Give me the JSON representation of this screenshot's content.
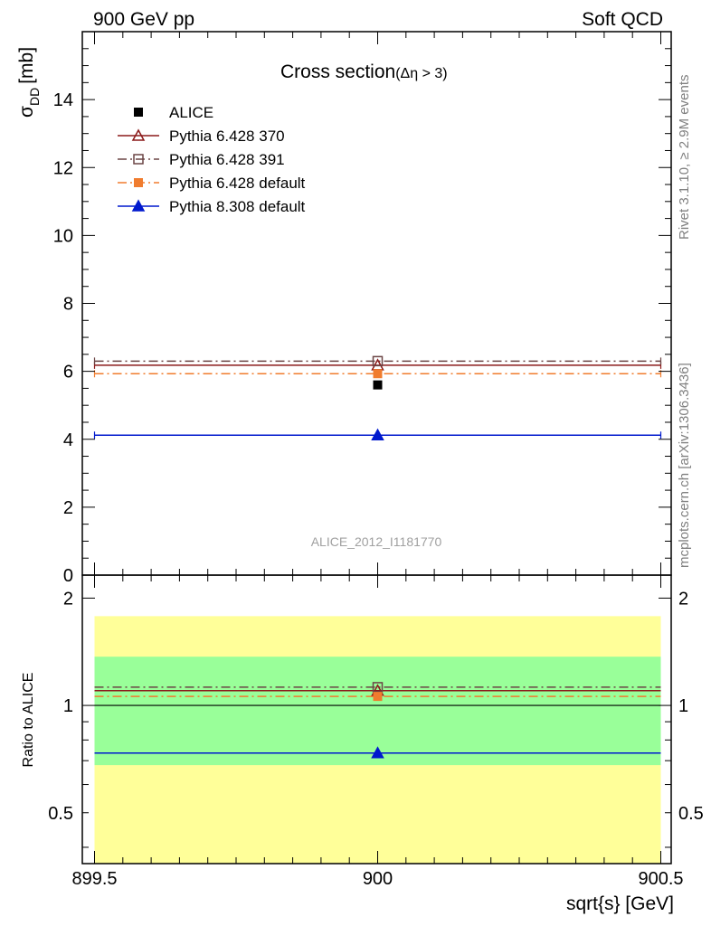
{
  "header": {
    "left": "900 GeV pp",
    "right": "Soft QCD"
  },
  "side_labels": {
    "rivet": "Rivet 3.1.10, ≥ 2.9M events",
    "mcplots": "mcplots.cern.ch [arXiv:1306.3436]"
  },
  "watermark": "ALICE_2012_I1181770",
  "chart_data": [
    {
      "type": "scatter",
      "title": "Cross section",
      "title_suffix": "(Δη > 3)",
      "ylabel_main": "σ",
      "ylabel_sub": "DD",
      "ylabel_unit": "[mb]",
      "xlim": [
        899.5,
        900.5
      ],
      "ylim": [
        0,
        16
      ],
      "yticks": [
        0,
        2,
        4,
        6,
        8,
        10,
        12,
        14
      ],
      "legend_position": "top-left",
      "series": [
        {
          "name": "ALICE",
          "color": "#000000",
          "marker": "square-filled",
          "line": "none",
          "points": [
            {
              "x": 900,
              "y": 5.6
            }
          ]
        },
        {
          "name": "Pythia 6.428 370",
          "color": "#8b1a1a",
          "marker": "triangle-open",
          "line": "solid",
          "points": [
            {
              "x": 900,
              "y": 6.18
            }
          ]
        },
        {
          "name": "Pythia 6.428 391",
          "color": "#6b4545",
          "marker": "square-open",
          "line": "dashdot",
          "points": [
            {
              "x": 900,
              "y": 6.3
            }
          ]
        },
        {
          "name": "Pythia 6.428 default",
          "color": "#f07c2e",
          "marker": "square-filled",
          "line": "dashdot",
          "points": [
            {
              "x": 900,
              "y": 5.93
            }
          ]
        },
        {
          "name": "Pythia 8.308 default",
          "color": "#0019ce",
          "marker": "triangle-filled",
          "line": "solid",
          "points": [
            {
              "x": 900,
              "y": 4.12
            }
          ]
        }
      ]
    },
    {
      "type": "scatter",
      "ylabel": "Ratio to ALICE",
      "xlabel": "sqrt{s} [GeV]",
      "xlim": [
        899.5,
        900.5
      ],
      "ylim": [
        0.36,
        2.32
      ],
      "log_y": true,
      "xticks": [
        "899.5",
        "900",
        "900.5"
      ],
      "yticks": [
        "0.5",
        "1",
        "2"
      ],
      "bands": [
        {
          "lo": 0.36,
          "hi": 1.78,
          "color": "#ffff99"
        },
        {
          "lo": 0.68,
          "hi": 1.37,
          "color": "#99ff99"
        }
      ],
      "reference": 1.0,
      "series": [
        {
          "name": "Pythia 6.428 370",
          "color": "#8b1a1a",
          "marker": "triangle-open",
          "line": "solid",
          "points": [
            {
              "x": 900,
              "y": 1.1
            }
          ]
        },
        {
          "name": "Pythia 6.428 391",
          "color": "#6b4545",
          "marker": "square-open",
          "line": "dashdot",
          "points": [
            {
              "x": 900,
              "y": 1.125
            }
          ]
        },
        {
          "name": "Pythia 6.428 default",
          "color": "#f07c2e",
          "marker": "square-filled",
          "line": "dashdot",
          "points": [
            {
              "x": 900,
              "y": 1.06
            }
          ]
        },
        {
          "name": "Pythia 8.308 default",
          "color": "#0019ce",
          "marker": "triangle-filled",
          "line": "solid",
          "points": [
            {
              "x": 900,
              "y": 0.735
            }
          ]
        }
      ]
    }
  ]
}
